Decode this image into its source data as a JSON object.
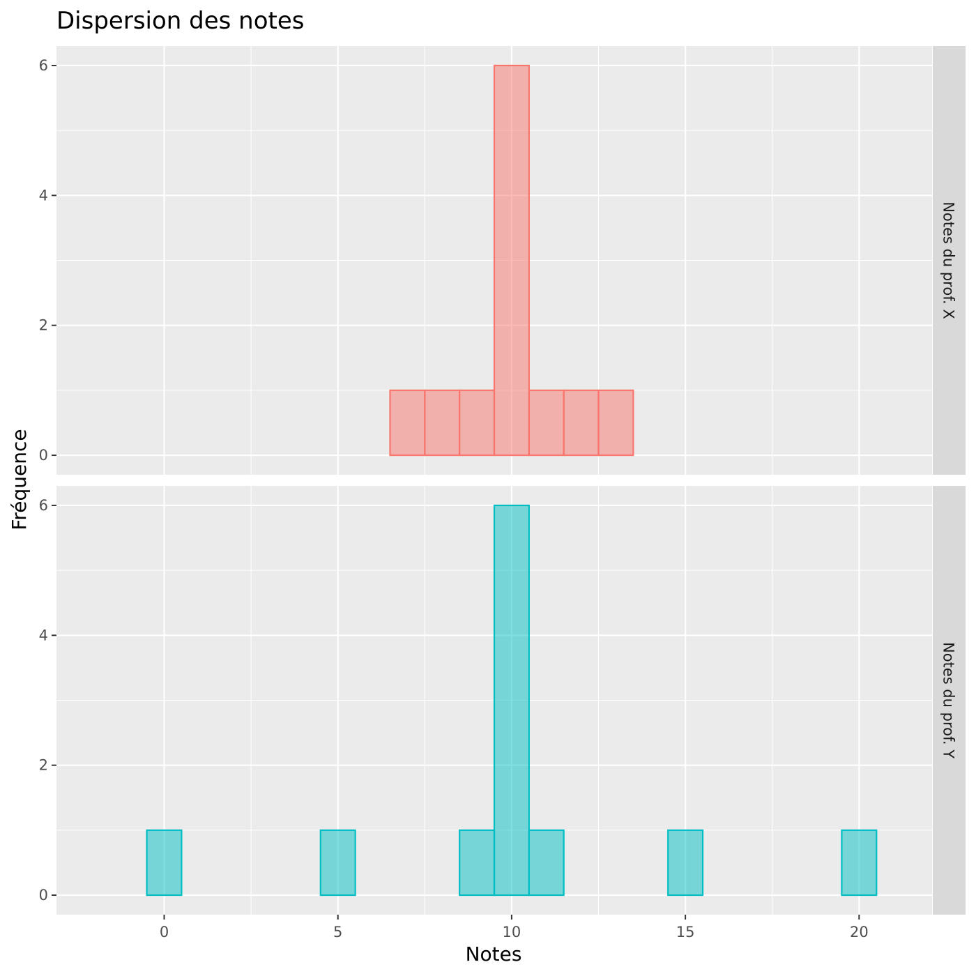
{
  "chart_data": {
    "type": "bar",
    "title": "Dispersion des notes",
    "xlabel": "Notes",
    "ylabel": "Fréquence",
    "x_ticks": [
      0,
      5,
      10,
      15,
      20
    ],
    "y_ticks": [
      0,
      2,
      4,
      6
    ],
    "xlim": [
      -3.1,
      22.1
    ],
    "ylim": [
      -0.3,
      6.3
    ],
    "bin_width": 1,
    "bins": [
      0,
      1,
      2,
      3,
      4,
      5,
      6,
      7,
      8,
      9,
      10,
      11,
      12,
      13,
      14,
      15,
      16,
      17,
      18,
      19,
      20
    ],
    "grid": true,
    "facets": [
      {
        "name": "Notes du prof. X",
        "color": "#F8766D",
        "values": [
          0,
          0,
          0,
          0,
          0,
          0,
          0,
          1,
          1,
          1,
          6,
          1,
          1,
          1,
          0,
          0,
          0,
          0,
          0,
          0,
          0
        ]
      },
      {
        "name": "Notes du prof. Y",
        "color": "#00BFC4",
        "values": [
          1,
          0,
          0,
          0,
          0,
          1,
          0,
          0,
          0,
          1,
          6,
          1,
          0,
          0,
          0,
          1,
          0,
          0,
          0,
          0,
          1
        ]
      }
    ]
  }
}
